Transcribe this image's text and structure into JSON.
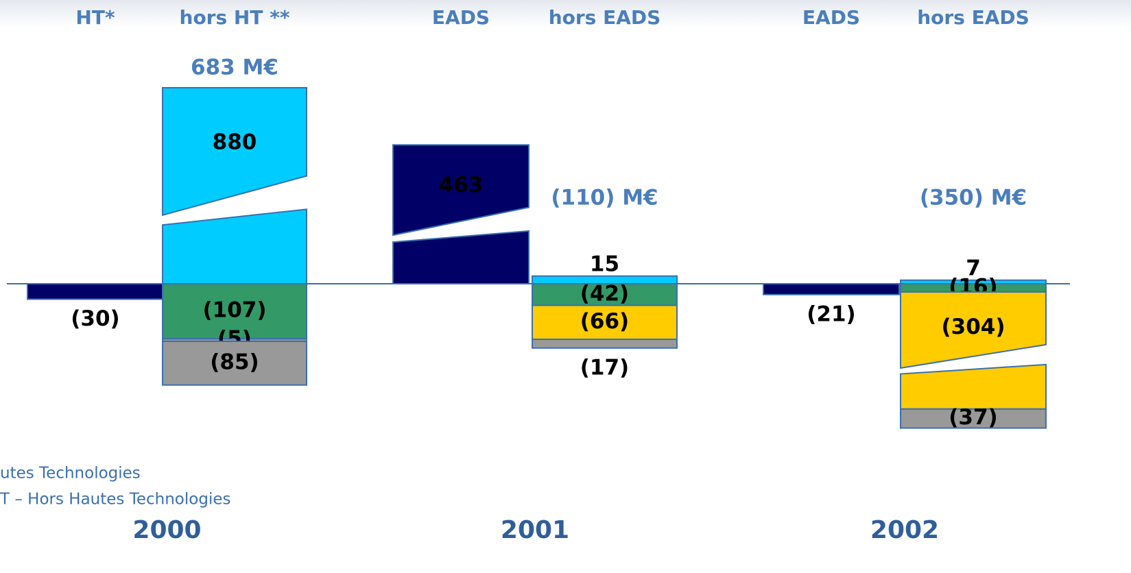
{
  "chart_data": {
    "type": "broken_stacked_bar",
    "groups": [
      {
        "year": "2000",
        "total": 683,
        "total_label": "683 M€",
        "bars": [
          {
            "name": "HT*",
            "values": [
              -30
            ],
            "value_labels": [
              "(30)"
            ],
            "colors": [
              "#000066"
            ]
          },
          {
            "name": "hors HT **",
            "values": [
              880,
              -107,
              -5,
              -85
            ],
            "value_labels": [
              "880",
              "(107)",
              "(5)",
              "(85)"
            ],
            "colors": [
              "#00ccff",
              "#339966",
              "#999999",
              "#999999"
            ]
          }
        ]
      },
      {
        "year": "2001",
        "total": -110,
        "total_label": "(110) M€",
        "bars": [
          {
            "name": "EADS",
            "values": [
              463
            ],
            "value_labels": [
              "463"
            ],
            "colors": [
              "#000066"
            ]
          },
          {
            "name": "hors EADS",
            "values": [
              15,
              -42,
              -66,
              -17
            ],
            "value_labels": [
              "15",
              "(42)",
              "(66)",
              "(17)"
            ],
            "colors": [
              "#00ccff",
              "#339966",
              "#ffcc00",
              "#999999"
            ]
          }
        ]
      },
      {
        "year": "2002",
        "total": -350,
        "total_label": "(350) M€",
        "bars": [
          {
            "name": "EADS",
            "values": [
              -21
            ],
            "value_labels": [
              "(21)"
            ],
            "colors": [
              "#000066"
            ]
          },
          {
            "name": "hors EADS",
            "values": [
              7,
              -16,
              -304,
              -37
            ],
            "value_labels": [
              "7",
              "(16)",
              "(304)",
              "(37)"
            ],
            "colors": [
              "#00ccff",
              "#339966",
              "#ffcc00",
              "#999999"
            ]
          }
        ]
      }
    ],
    "footnotes": [
      "utes Technologies",
      "T – Hors Hautes Technologies"
    ]
  }
}
